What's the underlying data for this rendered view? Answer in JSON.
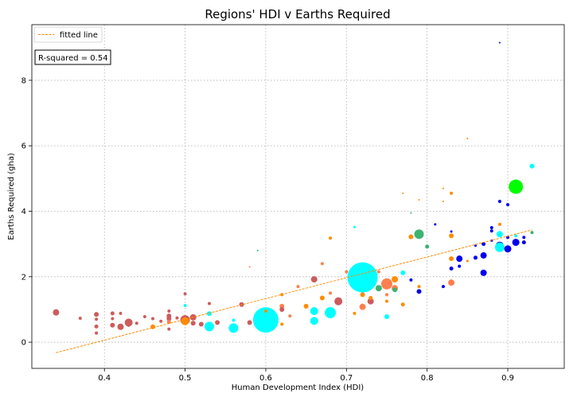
{
  "chart_data": {
    "type": "scatter",
    "title": "Regions' HDI v Earths Required",
    "xlabel": "Human Development Index (HDI)",
    "ylabel": "Earths Required (gha)",
    "xlim": [
      0.31,
      0.97
    ],
    "ylim": [
      -0.8,
      9.7
    ],
    "xticks": [
      "0.4",
      "0.5",
      "0.6",
      "0.7",
      "0.8",
      "0.9"
    ],
    "yticks": [
      "0",
      "2",
      "4",
      "6",
      "8"
    ],
    "grid": true,
    "legend": {
      "placement": "top-left",
      "entries": [
        "fitted line"
      ]
    },
    "annotation": "R-squared = 0.54",
    "colors": {
      "fit_line": "#ff8c00",
      "africa": "#cd5c5c",
      "asia": "#00ffff",
      "europe": "#0000ee",
      "latin_america": "#ff8c00",
      "middle_east": "#ff7f50",
      "americas": "#3cb371",
      "highlight": "#00ff00"
    },
    "fitted_line": {
      "x": [
        0.34,
        0.93
      ],
      "y": [
        -0.32,
        3.43
      ]
    },
    "points": [
      {
        "x": 0.34,
        "y": 0.91,
        "s": 4,
        "c": "africa"
      },
      {
        "x": 0.37,
        "y": 0.73,
        "s": 2,
        "c": "africa"
      },
      {
        "x": 0.39,
        "y": 0.85,
        "s": 3,
        "c": "africa"
      },
      {
        "x": 0.39,
        "y": 0.7,
        "s": 2,
        "c": "africa"
      },
      {
        "x": 0.39,
        "y": 0.48,
        "s": 2.5,
        "c": "africa"
      },
      {
        "x": 0.39,
        "y": 0.28,
        "s": 2,
        "c": "africa"
      },
      {
        "x": 0.41,
        "y": 0.88,
        "s": 2.5,
        "c": "africa"
      },
      {
        "x": 0.41,
        "y": 0.72,
        "s": 2,
        "c": "africa"
      },
      {
        "x": 0.41,
        "y": 0.52,
        "s": 3,
        "c": "africa"
      },
      {
        "x": 0.42,
        "y": 0.88,
        "s": 2,
        "c": "africa"
      },
      {
        "x": 0.42,
        "y": 0.47,
        "s": 4,
        "c": "africa"
      },
      {
        "x": 0.43,
        "y": 0.6,
        "s": 5,
        "c": "africa"
      },
      {
        "x": 0.43,
        "y": 0.52,
        "s": 2,
        "c": "africa"
      },
      {
        "x": 0.44,
        "y": 0.58,
        "s": 2,
        "c": "africa"
      },
      {
        "x": 0.45,
        "y": 0.78,
        "s": 2,
        "c": "africa"
      },
      {
        "x": 0.46,
        "y": 0.72,
        "s": 2,
        "c": "africa"
      },
      {
        "x": 0.46,
        "y": 0.47,
        "s": 3,
        "c": "latin_america"
      },
      {
        "x": 0.47,
        "y": 0.64,
        "s": 2,
        "c": "africa"
      },
      {
        "x": 0.48,
        "y": 0.95,
        "s": 2,
        "c": "africa"
      },
      {
        "x": 0.48,
        "y": 0.8,
        "s": 3,
        "c": "africa"
      },
      {
        "x": 0.48,
        "y": 0.72,
        "s": 3,
        "c": "africa"
      },
      {
        "x": 0.48,
        "y": 0.62,
        "s": 2.5,
        "c": "middle_east"
      },
      {
        "x": 0.48,
        "y": 0.4,
        "s": 2,
        "c": "africa"
      },
      {
        "x": 0.49,
        "y": 0.74,
        "s": 2,
        "c": "africa"
      },
      {
        "x": 0.5,
        "y": 1.48,
        "s": 2,
        "c": "africa"
      },
      {
        "x": 0.5,
        "y": 1.12,
        "s": 2,
        "c": "asia"
      },
      {
        "x": 0.5,
        "y": 0.68,
        "s": 6,
        "c": "africa"
      },
      {
        "x": 0.5,
        "y": 0.64,
        "s": 5,
        "c": "latin_america"
      },
      {
        "x": 0.51,
        "y": 0.76,
        "s": 4,
        "c": "africa"
      },
      {
        "x": 0.51,
        "y": 0.58,
        "s": 3,
        "c": "africa"
      },
      {
        "x": 0.52,
        "y": 0.55,
        "s": 3,
        "c": "africa"
      },
      {
        "x": 0.53,
        "y": 0.87,
        "s": 3,
        "c": "asia"
      },
      {
        "x": 0.53,
        "y": 0.48,
        "s": 6,
        "c": "asia"
      },
      {
        "x": 0.53,
        "y": 1.18,
        "s": 2,
        "c": "africa"
      },
      {
        "x": 0.54,
        "y": 0.6,
        "s": 3,
        "c": "africa"
      },
      {
        "x": 0.56,
        "y": 0.67,
        "s": 2,
        "c": "asia"
      },
      {
        "x": 0.56,
        "y": 0.43,
        "s": 6,
        "c": "asia"
      },
      {
        "x": 0.57,
        "y": 1.15,
        "s": 3,
        "c": "africa"
      },
      {
        "x": 0.58,
        "y": 2.3,
        "s": 1,
        "c": "middle_east"
      },
      {
        "x": 0.58,
        "y": 0.6,
        "s": 3,
        "c": "africa"
      },
      {
        "x": 0.59,
        "y": 2.8,
        "s": 1,
        "c": "americas"
      },
      {
        "x": 0.6,
        "y": 0.68,
        "s": 16,
        "c": "asia"
      },
      {
        "x": 0.6,
        "y": 0.95,
        "s": 2,
        "c": "latin_america"
      },
      {
        "x": 0.62,
        "y": 1.1,
        "s": 3,
        "c": "middle_east"
      },
      {
        "x": 0.62,
        "y": 1.0,
        "s": 3,
        "c": "africa"
      },
      {
        "x": 0.62,
        "y": 1.45,
        "s": 2,
        "c": "latin_america"
      },
      {
        "x": 0.62,
        "y": 0.55,
        "s": 2,
        "c": "latin_america"
      },
      {
        "x": 0.63,
        "y": 0.8,
        "s": 2,
        "c": "middle_east"
      },
      {
        "x": 0.64,
        "y": 1.7,
        "s": 2,
        "c": "middle_east"
      },
      {
        "x": 0.65,
        "y": 1.1,
        "s": 3,
        "c": "latin_america"
      },
      {
        "x": 0.66,
        "y": 1.92,
        "s": 4,
        "c": "africa"
      },
      {
        "x": 0.66,
        "y": 0.95,
        "s": 5,
        "c": "asia"
      },
      {
        "x": 0.66,
        "y": 0.65,
        "s": 5,
        "c": "asia"
      },
      {
        "x": 0.67,
        "y": 2.4,
        "s": 2,
        "c": "middle_east"
      },
      {
        "x": 0.67,
        "y": 1.35,
        "s": 3,
        "c": "latin_america"
      },
      {
        "x": 0.68,
        "y": 3.18,
        "s": 2,
        "c": "latin_america"
      },
      {
        "x": 0.68,
        "y": 0.9,
        "s": 7,
        "c": "asia"
      },
      {
        "x": 0.68,
        "y": 1.5,
        "s": 2,
        "c": "middle_east"
      },
      {
        "x": 0.69,
        "y": 1.25,
        "s": 5,
        "c": "africa"
      },
      {
        "x": 0.7,
        "y": 2.15,
        "s": 2,
        "c": "middle_east"
      },
      {
        "x": 0.71,
        "y": 3.52,
        "s": 1.5,
        "c": "asia"
      },
      {
        "x": 0.71,
        "y": 0.88,
        "s": 2,
        "c": "latin_america"
      },
      {
        "x": 0.72,
        "y": 1.98,
        "s": 19,
        "c": "asia"
      },
      {
        "x": 0.72,
        "y": 1.08,
        "s": 4,
        "c": "middle_east"
      },
      {
        "x": 0.72,
        "y": 1.45,
        "s": 3,
        "c": "latin_america"
      },
      {
        "x": 0.73,
        "y": 1.25,
        "s": 4,
        "c": "africa"
      },
      {
        "x": 0.73,
        "y": 1.35,
        "s": 2.5,
        "c": "latin_america"
      },
      {
        "x": 0.74,
        "y": 1.65,
        "s": 4,
        "c": "americas"
      },
      {
        "x": 0.74,
        "y": 2.15,
        "s": 2,
        "c": "middle_east"
      },
      {
        "x": 0.75,
        "y": 1.78,
        "s": 7,
        "c": "middle_east"
      },
      {
        "x": 0.75,
        "y": 1.45,
        "s": 2,
        "c": "middle_east"
      },
      {
        "x": 0.75,
        "y": 1.25,
        "s": 2,
        "c": "latin_america"
      },
      {
        "x": 0.75,
        "y": 0.78,
        "s": 3,
        "c": "asia"
      },
      {
        "x": 0.76,
        "y": 1.92,
        "s": 4,
        "c": "latin_america"
      },
      {
        "x": 0.76,
        "y": 1.65,
        "s": 4,
        "c": "middle_east"
      },
      {
        "x": 0.76,
        "y": 1.6,
        "s": 3,
        "c": "americas"
      },
      {
        "x": 0.77,
        "y": 4.55,
        "s": 1,
        "c": "latin_america"
      },
      {
        "x": 0.77,
        "y": 2.12,
        "s": 3,
        "c": "asia"
      },
      {
        "x": 0.77,
        "y": 1.15,
        "s": 2.5,
        "c": "latin_america"
      },
      {
        "x": 0.78,
        "y": 1.9,
        "s": 2,
        "c": "europe"
      },
      {
        "x": 0.78,
        "y": 3.22,
        "s": 3,
        "c": "latin_america"
      },
      {
        "x": 0.78,
        "y": 3.95,
        "s": 1,
        "c": "americas"
      },
      {
        "x": 0.79,
        "y": 4.35,
        "s": 1,
        "c": "latin_america"
      },
      {
        "x": 0.79,
        "y": 3.3,
        "s": 6,
        "c": "americas"
      },
      {
        "x": 0.79,
        "y": 1.55,
        "s": 3,
        "c": "europe"
      },
      {
        "x": 0.79,
        "y": 1.7,
        "s": 2,
        "c": "latin_america"
      },
      {
        "x": 0.8,
        "y": 2.92,
        "s": 2.5,
        "c": "americas"
      },
      {
        "x": 0.81,
        "y": 3.6,
        "s": 1.5,
        "c": "europe"
      },
      {
        "x": 0.82,
        "y": 4.7,
        "s": 1,
        "c": "latin_america"
      },
      {
        "x": 0.82,
        "y": 1.7,
        "s": 2,
        "c": "europe"
      },
      {
        "x": 0.82,
        "y": 4.3,
        "s": 1,
        "c": "latin_america"
      },
      {
        "x": 0.83,
        "y": 4.55,
        "s": 2,
        "c": "latin_america"
      },
      {
        "x": 0.83,
        "y": 3.38,
        "s": 1.5,
        "c": "europe"
      },
      {
        "x": 0.83,
        "y": 3.25,
        "s": 3,
        "c": "latin_america"
      },
      {
        "x": 0.83,
        "y": 2.55,
        "s": 3,
        "c": "latin_america"
      },
      {
        "x": 0.83,
        "y": 2.25,
        "s": 2.5,
        "c": "europe"
      },
      {
        "x": 0.83,
        "y": 1.82,
        "s": 4,
        "c": "middle_east"
      },
      {
        "x": 0.84,
        "y": 2.55,
        "s": 4,
        "c": "europe"
      },
      {
        "x": 0.84,
        "y": 2.32,
        "s": 2,
        "c": "europe"
      },
      {
        "x": 0.85,
        "y": 6.22,
        "s": 1,
        "c": "latin_america"
      },
      {
        "x": 0.85,
        "y": 2.48,
        "s": 1.5,
        "c": "latin_america"
      },
      {
        "x": 0.86,
        "y": 2.58,
        "s": 2.5,
        "c": "europe"
      },
      {
        "x": 0.86,
        "y": 2.95,
        "s": 1.5,
        "c": "europe"
      },
      {
        "x": 0.87,
        "y": 3.0,
        "s": 2.5,
        "c": "europe"
      },
      {
        "x": 0.87,
        "y": 2.65,
        "s": 4,
        "c": "europe"
      },
      {
        "x": 0.87,
        "y": 2.12,
        "s": 4,
        "c": "europe"
      },
      {
        "x": 0.88,
        "y": 3.5,
        "s": 2,
        "c": "europe"
      },
      {
        "x": 0.88,
        "y": 3.4,
        "s": 2,
        "c": "europe"
      },
      {
        "x": 0.88,
        "y": 3.1,
        "s": 1.5,
        "c": "europe"
      },
      {
        "x": 0.89,
        "y": 9.15,
        "s": 1,
        "c": "europe"
      },
      {
        "x": 0.89,
        "y": 4.3,
        "s": 2,
        "c": "europe"
      },
      {
        "x": 0.89,
        "y": 3.6,
        "s": 2,
        "c": "latin_america"
      },
      {
        "x": 0.89,
        "y": 3.3,
        "s": 4,
        "c": "asia"
      },
      {
        "x": 0.89,
        "y": 2.95,
        "s": 5,
        "c": "europe"
      },
      {
        "x": 0.89,
        "y": 2.9,
        "s": 6,
        "c": "asia"
      },
      {
        "x": 0.9,
        "y": 2.85,
        "s": 4.5,
        "c": "europe"
      },
      {
        "x": 0.9,
        "y": 3.2,
        "s": 2,
        "c": "europe"
      },
      {
        "x": 0.9,
        "y": 4.2,
        "s": 2,
        "c": "europe"
      },
      {
        "x": 0.91,
        "y": 4.75,
        "s": 9,
        "c": "highlight"
      },
      {
        "x": 0.91,
        "y": 3.05,
        "s": 4.5,
        "c": "europe"
      },
      {
        "x": 0.91,
        "y": 3.25,
        "s": 2,
        "c": "asia"
      },
      {
        "x": 0.92,
        "y": 3.2,
        "s": 2,
        "c": "europe"
      },
      {
        "x": 0.92,
        "y": 3.05,
        "s": 2.5,
        "c": "europe"
      },
      {
        "x": 0.93,
        "y": 5.38,
        "s": 3,
        "c": "asia"
      },
      {
        "x": 0.93,
        "y": 3.35,
        "s": 2,
        "c": "americas"
      }
    ]
  }
}
